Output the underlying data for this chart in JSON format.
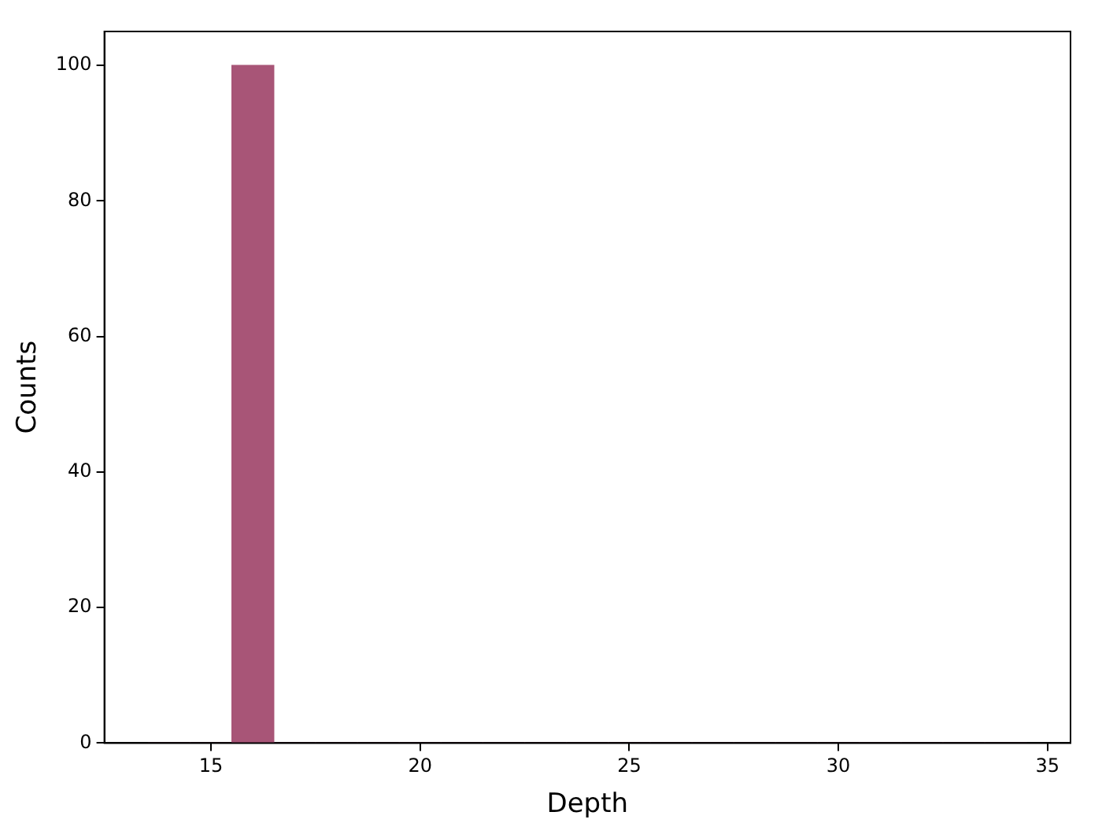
{
  "chart_data": {
    "type": "histogram",
    "xlabel": "Depth",
    "ylabel": "Counts",
    "color": "#a85577",
    "bins": [
      13.5,
      14.5,
      15.5,
      16.5,
      17.5,
      18.5,
      19.5,
      20.5,
      21.5,
      22.5,
      23.5,
      24.5,
      25.5,
      26.5,
      27.5,
      28.5,
      29.5,
      30.5,
      31.5,
      32.5,
      33.5,
      34.5
    ],
    "values": [
      0,
      0,
      100,
      0,
      0,
      0,
      0,
      0,
      0,
      0,
      0,
      0,
      0,
      0,
      0,
      0,
      0,
      0,
      0,
      0,
      0
    ],
    "xlim": [
      12.45,
      35.55
    ],
    "xticks": [
      15,
      20,
      25,
      30,
      35
    ],
    "ylim": [
      0,
      105
    ],
    "yticks": [
      0,
      20,
      40,
      60,
      80,
      100
    ],
    "grid": false,
    "legend": false
  }
}
